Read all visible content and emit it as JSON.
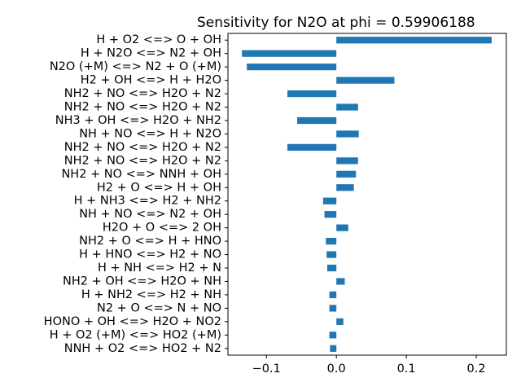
{
  "chart_data": {
    "type": "bar",
    "orientation": "horizontal",
    "title": "Sensitivity for N2O at phi = 0.59906188",
    "xlabel": "",
    "ylabel": "",
    "xlim": [
      -0.155,
      0.243
    ],
    "xticks": [
      -0.1,
      0.0,
      0.1,
      0.2
    ],
    "xtick_labels": [
      "−0.1",
      "0.0",
      "0.1",
      "0.2"
    ],
    "bar_color": "#1f77b4",
    "grid": false,
    "categories": [
      "H + O2 <=> O + OH",
      "H + N2O <=> N2 + OH",
      "N2O (+M) <=> N2 + O (+M)",
      "H2 + OH <=> H + H2O",
      "NH2 + NO <=> H2O + N2",
      "NH2 + NO <=> H2O + N2",
      "NH3 + OH <=> H2O + NH2",
      "NH + NO <=> H + N2O",
      "NH2 + NO <=> H2O + N2",
      "NH2 + NO <=> H2O + N2",
      "NH2 + NO <=> NNH + OH",
      "H2 + O <=> H + OH",
      "H + NH3 <=> H2 + NH2",
      "NH + NO <=> N2 + OH",
      "H2O + O <=> 2 OH",
      "NH2 + O <=> H + HNO",
      "H + HNO <=> H2 + NO",
      "H + NH <=> H2 + N",
      "NH2 + OH <=> H2O + NH",
      "H + NH2 <=> H2 + NH",
      "N2 + O <=> N + NO",
      "HONO + OH <=> H2O + NO2",
      "H + O2 (+M) <=> HO2 (+M)",
      "NNH + O2 <=> HO2 + N2"
    ],
    "values": [
      0.222,
      -0.135,
      -0.128,
      0.083,
      -0.07,
      0.031,
      -0.056,
      0.032,
      -0.07,
      0.031,
      0.028,
      0.025,
      -0.019,
      -0.017,
      0.017,
      -0.015,
      -0.014,
      -0.013,
      0.012,
      -0.01,
      -0.01,
      0.01,
      -0.01,
      -0.009
    ]
  }
}
